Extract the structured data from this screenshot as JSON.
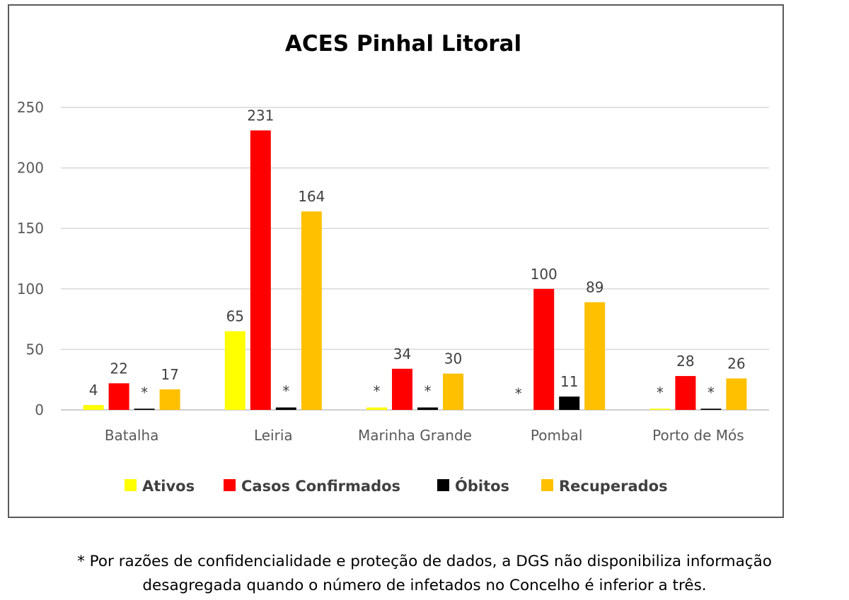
{
  "chart_data": {
    "type": "bar",
    "title": "ACES Pinhal Litoral",
    "categories": [
      "Batalha",
      "Leiria",
      "Marinha Grande",
      "Pombal",
      "Porto de Mós"
    ],
    "series": [
      {
        "name": "Ativos",
        "color": "#ffff00",
        "values": [
          4,
          65,
          2,
          0,
          1
        ],
        "labels": [
          "4",
          "65",
          "*",
          "*",
          "*"
        ]
      },
      {
        "name": "Casos Confirmados",
        "color": "#ff0000",
        "values": [
          22,
          231,
          34,
          100,
          28
        ],
        "labels": [
          "22",
          "231",
          "34",
          "100",
          "28"
        ]
      },
      {
        "name": "Óbitos",
        "color": "#000000",
        "values": [
          1,
          2,
          2,
          11,
          1
        ],
        "labels": [
          "*",
          "*",
          "*",
          "11",
          "*"
        ]
      },
      {
        "name": "Recuperados",
        "color": "#ffc000",
        "values": [
          17,
          164,
          30,
          89,
          26
        ],
        "labels": [
          "17",
          "164",
          "30",
          "89",
          "26"
        ]
      }
    ],
    "ylim": [
      0,
      250
    ],
    "yticks": [
      0,
      50,
      100,
      150,
      200,
      250
    ],
    "grid": true,
    "legend": "bottom"
  },
  "footnote": {
    "line1": "* Por razões de confidencialidade e proteção de dados, a DGS não disponibiliza informação",
    "line2": "desagregada quando o número de infetados no Concelho é inferior a três."
  }
}
